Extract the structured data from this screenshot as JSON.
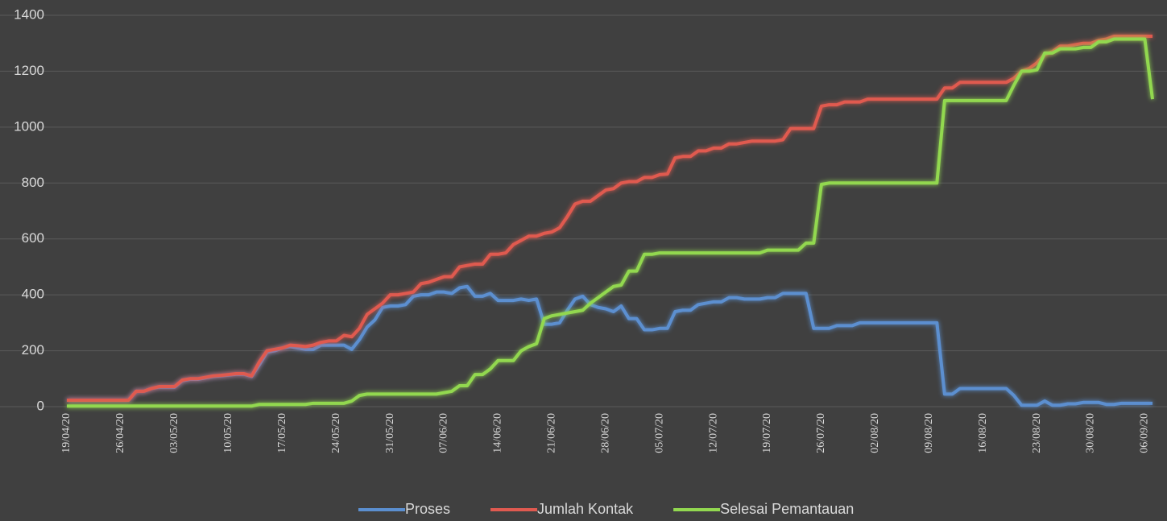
{
  "chart_data": {
    "type": "line",
    "categories": [
      "19/04/20",
      null,
      null,
      null,
      null,
      null,
      null,
      "26/04/20",
      null,
      null,
      null,
      null,
      null,
      null,
      "03/05/20",
      null,
      null,
      null,
      null,
      null,
      null,
      "10/05/20",
      null,
      null,
      null,
      null,
      null,
      null,
      "17/05/20",
      null,
      null,
      null,
      null,
      null,
      null,
      "24/05/20",
      null,
      null,
      null,
      null,
      null,
      null,
      "31/05/20",
      null,
      null,
      null,
      null,
      null,
      null,
      "07/06/20",
      null,
      null,
      null,
      null,
      null,
      null,
      "14/06/20",
      null,
      null,
      null,
      null,
      null,
      null,
      "21/06/20",
      null,
      null,
      null,
      null,
      null,
      null,
      "28/06/20",
      null,
      null,
      null,
      null,
      null,
      null,
      "05/07/20",
      null,
      null,
      null,
      null,
      null,
      null,
      "12/07/20",
      null,
      null,
      null,
      null,
      null,
      null,
      "19/07/20",
      null,
      null,
      null,
      null,
      null,
      null,
      "26/07/20",
      null,
      null,
      null,
      null,
      null,
      null,
      "02/08/20",
      null,
      null,
      null,
      null,
      null,
      null,
      "09/08/20",
      null,
      null,
      null,
      null,
      null,
      null,
      "16/08/20",
      null,
      null,
      null,
      null,
      null,
      null,
      "23/08/20",
      null,
      null,
      null,
      null,
      null,
      null,
      "30/08/20",
      null,
      null,
      null,
      null,
      null,
      null,
      "06/09/20",
      null
    ],
    "series": [
      {
        "name": "Proses",
        "color": "#5b8fd0",
        "values": [
          23,
          23,
          23,
          23,
          23,
          23,
          23,
          23,
          23,
          55,
          55,
          65,
          70,
          70,
          70,
          93,
          98,
          98,
          103,
          108,
          110,
          113,
          116,
          116,
          108,
          150,
          195,
          200,
          210,
          215,
          210,
          205,
          205,
          220,
          220,
          220,
          220,
          205,
          240,
          285,
          310,
          355,
          360,
          360,
          365,
          395,
          400,
          400,
          410,
          410,
          405,
          425,
          430,
          395,
          395,
          405,
          380,
          380,
          380,
          385,
          380,
          385,
          295,
          295,
          300,
          345,
          385,
          395,
          365,
          355,
          350,
          340,
          360,
          315,
          315,
          275,
          275,
          280,
          280,
          340,
          345,
          345,
          365,
          370,
          375,
          375,
          390,
          390,
          385,
          385,
          385,
          390,
          390,
          405,
          405,
          405,
          405,
          280,
          280,
          280,
          290,
          290,
          290,
          300,
          300,
          300,
          300,
          300,
          300,
          300,
          300,
          300,
          300,
          300,
          45,
          45,
          65,
          65,
          65,
          65,
          65,
          65,
          65,
          40,
          5,
          5,
          5,
          20,
          5,
          5,
          10,
          10,
          15,
          15,
          15,
          8,
          8,
          12,
          12,
          12,
          12,
          12
        ]
      },
      {
        "name": "Jumlah Kontak",
        "color": "#e05a50",
        "values": [
          23,
          23,
          23,
          23,
          23,
          23,
          23,
          23,
          23,
          55,
          55,
          65,
          72,
          72,
          72,
          95,
          100,
          100,
          105,
          110,
          112,
          115,
          118,
          118,
          110,
          160,
          200,
          205,
          210,
          220,
          218,
          215,
          220,
          230,
          235,
          235,
          255,
          250,
          280,
          330,
          350,
          370,
          400,
          400,
          405,
          410,
          440,
          445,
          455,
          465,
          465,
          500,
          505,
          510,
          510,
          545,
          545,
          550,
          580,
          595,
          610,
          610,
          620,
          625,
          640,
          680,
          725,
          735,
          735,
          755,
          775,
          780,
          800,
          805,
          805,
          820,
          820,
          830,
          832,
          890,
          895,
          895,
          915,
          915,
          925,
          925,
          940,
          940,
          945,
          950,
          950,
          950,
          950,
          955,
          995,
          995,
          995,
          995,
          1075,
          1080,
          1080,
          1090,
          1090,
          1090,
          1100,
          1100,
          1100,
          1100,
          1100,
          1100,
          1100,
          1100,
          1100,
          1100,
          1140,
          1140,
          1160,
          1160,
          1160,
          1160,
          1160,
          1160,
          1160,
          1175,
          1200,
          1210,
          1230,
          1260,
          1270,
          1290,
          1290,
          1295,
          1300,
          1300,
          1310,
          1315,
          1325,
          1325,
          1325,
          1325,
          1325,
          1325
        ]
      },
      {
        "name": "Selesai Pemantauan",
        "color": "#92d850",
        "values": [
          2,
          2,
          2,
          2,
          2,
          2,
          2,
          2,
          2,
          2,
          2,
          2,
          2,
          2,
          2,
          2,
          2,
          2,
          2,
          2,
          2,
          2,
          2,
          2,
          2,
          8,
          8,
          8,
          8,
          8,
          8,
          8,
          12,
          12,
          12,
          12,
          12,
          20,
          40,
          45,
          45,
          45,
          45,
          45,
          45,
          45,
          45,
          45,
          45,
          50,
          55,
          75,
          75,
          115,
          115,
          135,
          165,
          165,
          165,
          200,
          215,
          225,
          315,
          325,
          330,
          335,
          340,
          345,
          370,
          390,
          410,
          430,
          435,
          485,
          485,
          545,
          545,
          550,
          550,
          550,
          550,
          550,
          550,
          550,
          550,
          550,
          550,
          550,
          550,
          550,
          550,
          560,
          560,
          560,
          560,
          560,
          585,
          585,
          795,
          800,
          800,
          800,
          800,
          800,
          800,
          800,
          800,
          800,
          800,
          800,
          800,
          800,
          800,
          800,
          1095,
          1095,
          1095,
          1095,
          1095,
          1095,
          1095,
          1095,
          1095,
          1150,
          1200,
          1200,
          1205,
          1265,
          1265,
          1280,
          1280,
          1280,
          1285,
          1285,
          1305,
          1305,
          1315,
          1315,
          1315,
          1315,
          1315,
          1100
        ]
      }
    ],
    "ylim": [
      0,
      1400
    ],
    "yticks": [
      0,
      200,
      400,
      600,
      800,
      1000,
      1200,
      1400
    ],
    "grid": true,
    "legend": "bottom"
  }
}
